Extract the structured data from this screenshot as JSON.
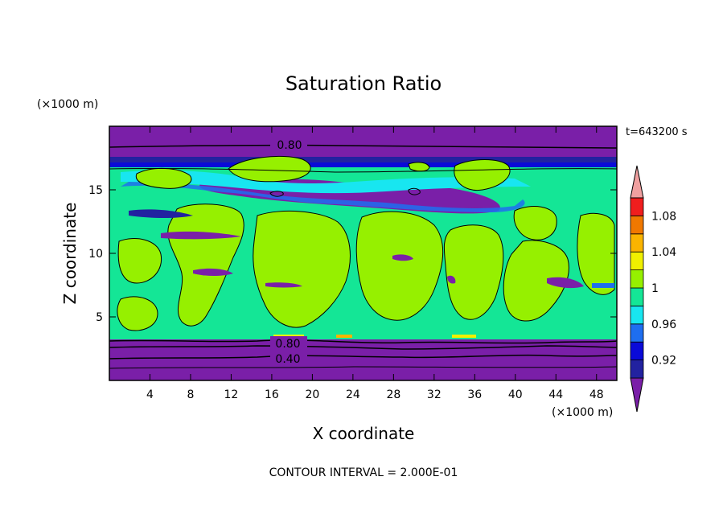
{
  "chart_data": {
    "type": "heatmap",
    "title": "Saturation Ratio",
    "xlabel": "X coordinate",
    "ylabel": "Z coordinate",
    "x_unit": "(×1000 m)",
    "y_unit": "(×1000 m)",
    "time_label": "t=643200 s",
    "footer": "CONTOUR INTERVAL = 2.000E-01",
    "xlim": [
      0,
      50
    ],
    "ylim": [
      0,
      20
    ],
    "x_ticks": [
      "4",
      "8",
      "12",
      "16",
      "20",
      "24",
      "28",
      "32",
      "36",
      "40",
      "44",
      "48"
    ],
    "y_ticks": [
      "5",
      "10",
      "15"
    ],
    "contour_labels": [
      "0.80",
      "0.80",
      "0.40"
    ],
    "colorbar": {
      "levels": [
        0.9,
        0.92,
        0.94,
        0.96,
        0.98,
        1.0,
        1.02,
        1.04,
        1.06,
        1.08,
        1.1
      ],
      "tick_labels": [
        "1.08",
        "1.04",
        "1",
        "0.96",
        "0.92"
      ],
      "colors": [
        "#7a1fa8",
        "#2222a0",
        "#0a0ad8",
        "#1e6ef0",
        "#18e6f0",
        "#14e696",
        "#96f000",
        "#f0f000",
        "#fab400",
        "#f07800",
        "#f01e1e",
        "#f0a0a0"
      ]
    },
    "regions": [
      {
        "z_range": [
          0,
          3.2
        ],
        "value": "< 0.90",
        "color": "#7a1fa8"
      },
      {
        "z_range": [
          3.2,
          16
        ],
        "value": "0.98–1.02",
        "color": "#14e696"
      },
      {
        "z_range": [
          16,
          18
        ],
        "value": "< 0.92",
        "color": "#2222a0"
      },
      {
        "z_range": [
          18,
          20
        ],
        "value": "< 0.90",
        "color": "#7a1fa8"
      }
    ]
  }
}
